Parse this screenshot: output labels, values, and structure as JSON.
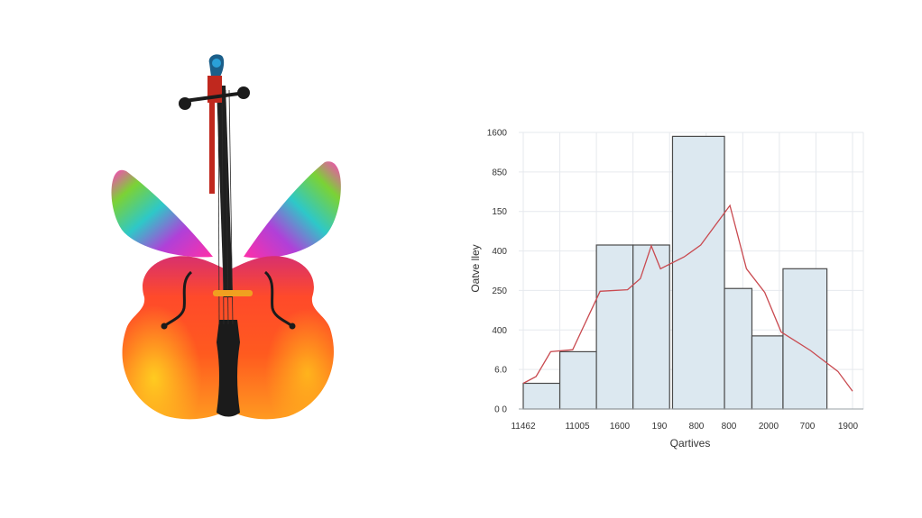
{
  "illustration": {
    "subject": "violin-butterfly",
    "colors": {
      "wing_top": "#ff3fbf",
      "wing_mid": "#2ec8c8",
      "wing_green": "#7bd235",
      "body_top": "#e13a6a",
      "body_mid": "#ff5a1f",
      "body_low": "#ffb81c",
      "fittings": "#1b1b1b",
      "bridge": "#f0a020"
    }
  },
  "chart_data": {
    "type": "bar",
    "title": "",
    "xlabel": "Qartives",
    "ylabel": "Oatve lley",
    "y_ticks": [
      "1600",
      "850",
      "150",
      "400",
      "250",
      "400",
      "6.0",
      "0 0"
    ],
    "x_ticks": [
      "11462",
      "11005",
      "1600",
      "190",
      "800",
      "800",
      "2000",
      "700",
      "1900"
    ],
    "ylim": [
      0,
      7
    ],
    "bars": [
      {
        "x0": 0,
        "x1": 1,
        "value": 0.65
      },
      {
        "x0": 1,
        "x1": 2,
        "value": 1.45
      },
      {
        "x0": 2,
        "x1": 3,
        "value": 4.15
      },
      {
        "x0": 3,
        "x1": 4,
        "value": 4.15
      },
      {
        "x0": 4.08,
        "x1": 5.5,
        "value": 6.9
      },
      {
        "x0": 5.5,
        "x1": 6.25,
        "value": 3.05
      },
      {
        "x0": 6.25,
        "x1": 7.1,
        "value": 1.85
      },
      {
        "x0": 7.1,
        "x1": 8.3,
        "value": 3.55
      }
    ],
    "curve": [
      [
        0,
        0.65
      ],
      [
        0.35,
        0.82
      ],
      [
        0.75,
        1.45
      ],
      [
        1.35,
        1.5
      ],
      [
        2.1,
        2.98
      ],
      [
        2.85,
        3.02
      ],
      [
        3.2,
        3.3
      ],
      [
        3.5,
        4.13
      ],
      [
        3.75,
        3.55
      ],
      [
        4.4,
        3.85
      ],
      [
        4.85,
        4.15
      ],
      [
        5.65,
        5.15
      ],
      [
        6.1,
        3.55
      ],
      [
        6.6,
        2.95
      ],
      [
        7.05,
        1.95
      ],
      [
        7.85,
        1.48
      ],
      [
        8.6,
        0.95
      ],
      [
        9.0,
        0.45
      ]
    ],
    "xlim": [
      0,
      9
    ],
    "grid": true,
    "legend": "none"
  }
}
